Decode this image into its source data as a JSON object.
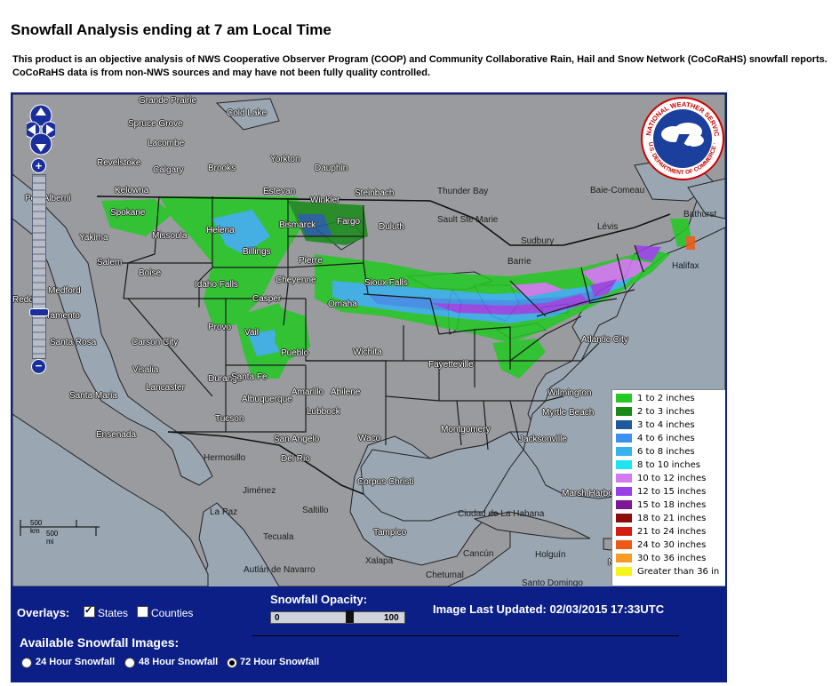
{
  "page": {
    "title": "Snowfall Analysis ending at 7 am Local Time",
    "description": "This product is an objective analysis of NWS Cooperative Observer Program (COOP) and Community Collaborative Rain, Hail and Snow Network (CoCoRaHS) snowfall reports.  CoCoRaHS data is from non-NWS sources and may have not been fully quality controlled."
  },
  "map": {
    "zoom_in": "+",
    "zoom_out": "−",
    "scale_km": "500 km",
    "scale_mi": "500 mi",
    "logo_text": "NATIONAL WEATHER SERVICE",
    "logo_subtext": "U.S. DEPARTMENT OF COMMERCE · NOAA",
    "cities": [
      "Grande Prairie",
      "Cold Lake",
      "Spruce Grove",
      "Lacombe",
      "Revelstoke",
      "Calgary",
      "Brooks",
      "Yorkton",
      "Dauphin",
      "Kelowna",
      "Estevan",
      "Winkler",
      "Steinbach",
      "Thunder Bay",
      "Baie-Comeau",
      "Port Alberni",
      "Spokane",
      "Helena",
      "Bismarck",
      "Fargo",
      "Duluth",
      "Sault Ste Marie",
      "Lévis",
      "Bathurst",
      "Yakima",
      "Missoula",
      "Sudbury",
      "Salem",
      "Boise",
      "Billings",
      "Pierre",
      "Barrie",
      "Halifax",
      "Medford",
      "Idaho Falls",
      "Sioux Falls",
      "Redding",
      "Casper",
      "Cheyenne",
      "Omaha",
      "Provo",
      "Atlantic City",
      "Sacramento",
      "Santa Rosa",
      "Carson City",
      "Vail",
      "Pueblo",
      "Wichita",
      "Durango",
      "Visalia",
      "Santa Fe",
      "Fayetteville",
      "Lancaster",
      "Amarillo",
      "Santa Maria",
      "Abilene",
      "Lubbock",
      "Wilmington",
      "Albuquerque",
      "Tucson",
      "Myrtle Beach",
      "Montgomery",
      "Ensenada",
      "San Angelo",
      "Waco",
      "Jacksonville",
      "Del Rio",
      "Hermosillo",
      "Corpus Christi",
      "Marsh Harbour",
      "Jiménez",
      "Saltillo",
      "La Paz",
      "Ciudad de La Habana",
      "Tampico",
      "Tecuala",
      "Cancún",
      "Holguín",
      "Autlán de Navarro",
      "Xalapa",
      "Chetumal",
      "Santo Domingo",
      "Nassau"
    ],
    "dark_labels": [
      "Thunder Bay",
      "Sault Ste Marie",
      "Sudbury",
      "Barrie",
      "Baie-Comeau",
      "Lévis",
      "Bathurst",
      "Halifax",
      "Hermosillo",
      "Jiménez",
      "Saltillo",
      "La Paz",
      "Tecuala",
      "Autlán de Navarro",
      "Xalapa",
      "Ciudad de La Habana",
      "Cancún",
      "Holguín",
      "Chetumal",
      "Santo Domingo"
    ]
  },
  "legend": {
    "items": [
      {
        "label": "1 to 2 inches",
        "color": "#22c922"
      },
      {
        "label": "2 to 3 inches",
        "color": "#188a18"
      },
      {
        "label": "3 to 4 inches",
        "color": "#1d5a9c"
      },
      {
        "label": "4 to 6 inches",
        "color": "#3d8ff0"
      },
      {
        "label": "6 to 8 inches",
        "color": "#37b2ee"
      },
      {
        "label": "8 to 10 inches",
        "color": "#1fe3ef"
      },
      {
        "label": "10 to 12 inches",
        "color": "#d27af0"
      },
      {
        "label": "12 to 15 inches",
        "color": "#9a3fe8"
      },
      {
        "label": "15 to 18 inches",
        "color": "#7d1698"
      },
      {
        "label": "18 to 21 inches",
        "color": "#8b0b0b"
      },
      {
        "label": "21 to 24 inches",
        "color": "#d41c12"
      },
      {
        "label": "24 to 30 inches",
        "color": "#ec5a16"
      },
      {
        "label": "30 to 36 inches",
        "color": "#f79a26"
      },
      {
        "label": "Greater than 36 in",
        "color": "#f6f31c"
      }
    ]
  },
  "controls": {
    "overlays_label": "Overlays:",
    "states_label": "States",
    "states_checked": true,
    "counties_label": "Counties",
    "counties_checked": false,
    "opacity_label": "Snowfall Opacity:",
    "opacity_min": "0",
    "opacity_max": "100",
    "opacity_value": 0.6,
    "updated_label": "Image Last Updated: 02/03/2015 17:33UTC",
    "available_label": "Available Snowfall Images:",
    "options": [
      {
        "label": "24 Hour Snowfall",
        "selected": false
      },
      {
        "label": "48 Hour Snowfall",
        "selected": false
      },
      {
        "label": "72 Hour Snowfall",
        "selected": true
      }
    ]
  }
}
